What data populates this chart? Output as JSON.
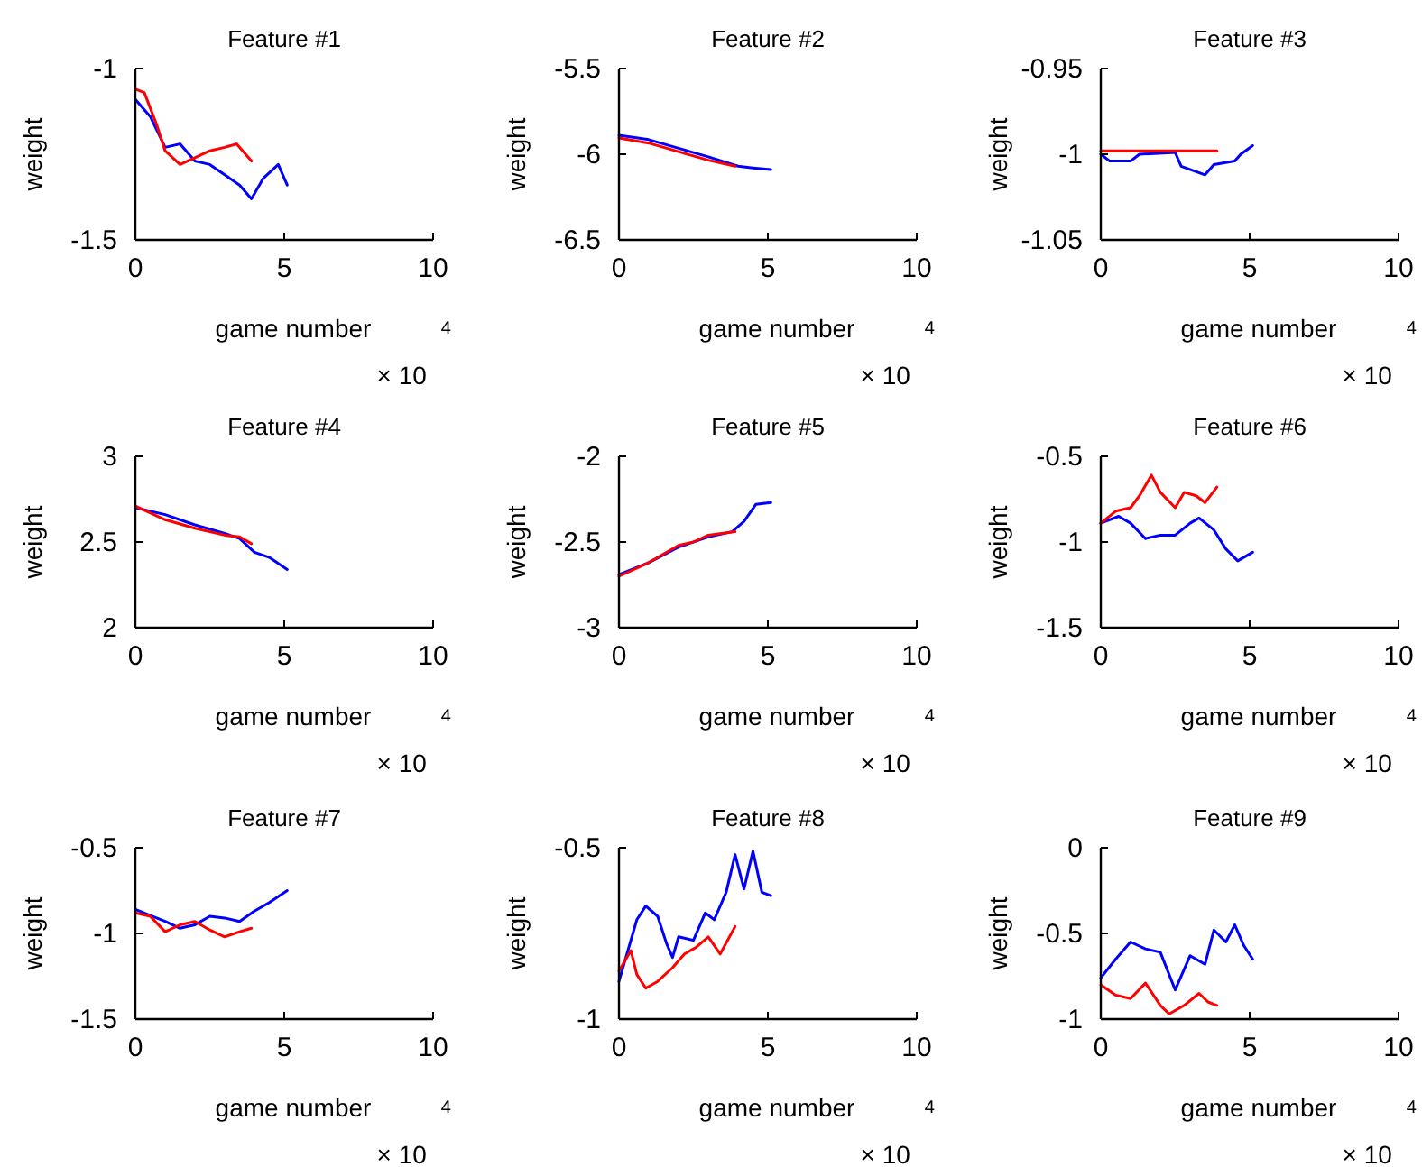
{
  "chart_data": [
    {
      "type": "line",
      "title": "Feature #1",
      "xlabel": "game number",
      "ylabel": "weight",
      "annotations": [
        "× 10$^{4}$"
      ],
      "xlim": [
        0,
        10
      ],
      "xticks": [
        0,
        5,
        10
      ],
      "ylim": [
        -1.5,
        -1
      ],
      "yticks": [
        -1.5,
        -1
      ],
      "series": [
        {
          "color": "#0000ff",
          "x": [
            0,
            0.5,
            1,
            1.5,
            2,
            2.5,
            3,
            3.5,
            3.9,
            4.3,
            4.8,
            5.1
          ],
          "values": [
            -1.09,
            -1.14,
            -1.23,
            -1.22,
            -1.27,
            -1.28,
            -1.31,
            -1.34,
            -1.38,
            -1.32,
            -1.28,
            -1.34
          ]
        },
        {
          "color": "#ff0000",
          "x": [
            0,
            0.3,
            0.7,
            1,
            1.5,
            2,
            2.5,
            3,
            3.4,
            3.9
          ],
          "values": [
            -1.06,
            -1.07,
            -1.16,
            -1.24,
            -1.28,
            -1.26,
            -1.24,
            -1.23,
            -1.22,
            -1.27
          ]
        }
      ]
    },
    {
      "type": "line",
      "title": "Feature #2",
      "xlabel": "game number",
      "ylabel": "weight",
      "annotations": [
        "× 10$^{4}$"
      ],
      "xlim": [
        0,
        10
      ],
      "xticks": [
        0,
        5,
        10
      ],
      "ylim": [
        -6.5,
        -5.5
      ],
      "yticks": [
        -6.5,
        -6,
        -5.5
      ],
      "series": [
        {
          "color": "#0000ff",
          "x": [
            0,
            1,
            2,
            3,
            4,
            4.5,
            5.1
          ],
          "values": [
            -5.89,
            -5.915,
            -5.965,
            -6.015,
            -6.07,
            -6.08,
            -6.09
          ]
        },
        {
          "color": "#ff0000",
          "x": [
            0,
            1,
            2,
            3,
            3.9
          ],
          "values": [
            -5.905,
            -5.935,
            -5.985,
            -6.035,
            -6.07
          ]
        }
      ]
    },
    {
      "type": "line",
      "title": "Feature #3",
      "xlabel": "game number",
      "ylabel": "weight",
      "annotations": [
        "× 10$^{4}$"
      ],
      "xlim": [
        0,
        10
      ],
      "xticks": [
        0,
        5,
        10
      ],
      "ylim": [
        -1.05,
        -0.95
      ],
      "yticks": [
        -1.05,
        -1,
        -0.95
      ],
      "series": [
        {
          "color": "#0000ff",
          "x": [
            0,
            0.3,
            1,
            1.3,
            2.5,
            2.7,
            3.5,
            3.8,
            4.5,
            4.7,
            5.1
          ],
          "values": [
            -1,
            -1.004,
            -1.004,
            -1,
            -0.999,
            -1.007,
            -1.012,
            -1.006,
            -1.004,
            -1,
            -0.995
          ]
        },
        {
          "color": "#ff0000",
          "x": [
            0,
            3.9
          ],
          "values": [
            -0.998,
            -0.998
          ]
        }
      ]
    },
    {
      "type": "line",
      "title": "Feature #4",
      "xlabel": "game number",
      "ylabel": "weight",
      "annotations": [
        "× 10$^{4}$"
      ],
      "xlim": [
        0,
        10
      ],
      "xticks": [
        0,
        5,
        10
      ],
      "ylim": [
        2,
        3
      ],
      "yticks": [
        2,
        2.5,
        3
      ],
      "series": [
        {
          "color": "#0000ff",
          "x": [
            0,
            1,
            2,
            3,
            3.5,
            4,
            4.5,
            5.1
          ],
          "values": [
            2.7,
            2.66,
            2.6,
            2.55,
            2.52,
            2.44,
            2.41,
            2.34
          ]
        },
        {
          "color": "#ff0000",
          "x": [
            0,
            1,
            2,
            3,
            3.5,
            3.9
          ],
          "values": [
            2.71,
            2.63,
            2.58,
            2.54,
            2.53,
            2.49
          ]
        }
      ]
    },
    {
      "type": "line",
      "title": "Feature #5",
      "xlabel": "game number",
      "ylabel": "weight",
      "annotations": [
        "× 10$^{4}$"
      ],
      "xlim": [
        0,
        10
      ],
      "xticks": [
        0,
        5,
        10
      ],
      "ylim": [
        -3,
        -2
      ],
      "yticks": [
        -3,
        -2.5,
        -2
      ],
      "series": [
        {
          "color": "#0000ff",
          "x": [
            0,
            1,
            2,
            3,
            3.8,
            4.2,
            4.6,
            5.1
          ],
          "values": [
            -2.69,
            -2.62,
            -2.53,
            -2.47,
            -2.44,
            -2.38,
            -2.28,
            -2.27
          ]
        },
        {
          "color": "#ff0000",
          "x": [
            0,
            1,
            2,
            2.5,
            3,
            3.9
          ],
          "values": [
            -2.7,
            -2.62,
            -2.52,
            -2.5,
            -2.46,
            -2.44
          ]
        }
      ]
    },
    {
      "type": "line",
      "title": "Feature #6",
      "xlabel": "game number",
      "ylabel": "weight",
      "annotations": [
        "× 10$^{4}$"
      ],
      "xlim": [
        0,
        10
      ],
      "xticks": [
        0,
        5,
        10
      ],
      "ylim": [
        -1.5,
        -0.5
      ],
      "yticks": [
        -1.5,
        -1,
        -0.5
      ],
      "series": [
        {
          "color": "#0000ff",
          "x": [
            0,
            0.6,
            1,
            1.5,
            2,
            2.5,
            3,
            3.3,
            3.8,
            4.2,
            4.6,
            5.1
          ],
          "values": [
            -0.89,
            -0.85,
            -0.89,
            -0.98,
            -0.96,
            -0.96,
            -0.89,
            -0.86,
            -0.93,
            -1.04,
            -1.11,
            -1.06
          ]
        },
        {
          "color": "#ff0000",
          "x": [
            0,
            0.5,
            1,
            1.3,
            1.7,
            2,
            2.5,
            2.8,
            3.2,
            3.5,
            3.9
          ],
          "values": [
            -0.89,
            -0.82,
            -0.8,
            -0.73,
            -0.61,
            -0.71,
            -0.8,
            -0.71,
            -0.73,
            -0.77,
            -0.68
          ]
        }
      ]
    },
    {
      "type": "line",
      "title": "Feature #7",
      "xlabel": "game number",
      "ylabel": "weight",
      "annotations": [
        "× 10$^{4}$"
      ],
      "xlim": [
        0,
        10
      ],
      "xticks": [
        0,
        5,
        10
      ],
      "ylim": [
        -1.5,
        -0.5
      ],
      "yticks": [
        -1.5,
        -1,
        -0.5
      ],
      "series": [
        {
          "color": "#0000ff",
          "x": [
            0,
            1,
            1.5,
            2,
            2.5,
            3,
            3.5,
            4,
            4.5,
            5.1
          ],
          "values": [
            -0.86,
            -0.93,
            -0.97,
            -0.95,
            -0.9,
            -0.91,
            -0.93,
            -0.87,
            -0.82,
            -0.75
          ]
        },
        {
          "color": "#ff0000",
          "x": [
            0,
            0.5,
            1,
            1.5,
            2,
            2.5,
            3,
            3.5,
            3.9
          ],
          "values": [
            -0.88,
            -0.9,
            -0.99,
            -0.95,
            -0.93,
            -0.98,
            -1.02,
            -0.99,
            -0.97
          ]
        }
      ]
    },
    {
      "type": "line",
      "title": "Feature #8",
      "xlabel": "game number",
      "ylabel": "weight",
      "annotations": [
        "× 10$^{4}$"
      ],
      "xlim": [
        0,
        10
      ],
      "xticks": [
        0,
        5,
        10
      ],
      "ylim": [
        -1,
        -0.5
      ],
      "yticks": [
        -1,
        -0.5
      ],
      "series": [
        {
          "color": "#0000ff",
          "x": [
            0,
            0.3,
            0.6,
            0.9,
            1.3,
            1.6,
            1.8,
            2,
            2.5,
            2.9,
            3.2,
            3.6,
            3.9,
            4.2,
            4.5,
            4.8,
            5.1
          ],
          "values": [
            -0.89,
            -0.8,
            -0.71,
            -0.67,
            -0.7,
            -0.78,
            -0.82,
            -0.76,
            -0.77,
            -0.69,
            -0.71,
            -0.63,
            -0.52,
            -0.62,
            -0.51,
            -0.63,
            -0.64
          ]
        },
        {
          "color": "#ff0000",
          "x": [
            0,
            0.4,
            0.6,
            0.9,
            1.3,
            1.8,
            2.2,
            2.6,
            3,
            3.4,
            3.9
          ],
          "values": [
            -0.86,
            -0.8,
            -0.87,
            -0.91,
            -0.89,
            -0.85,
            -0.81,
            -0.79,
            -0.76,
            -0.81,
            -0.73
          ]
        }
      ]
    },
    {
      "type": "line",
      "title": "Feature #9",
      "xlabel": "game number",
      "ylabel": "weight",
      "annotations": [
        "× 10$^{4}$"
      ],
      "xlim": [
        0,
        10
      ],
      "xticks": [
        0,
        5,
        10
      ],
      "ylim": [
        -1,
        0
      ],
      "yticks": [
        -1,
        -0.5,
        0
      ],
      "series": [
        {
          "color": "#0000ff",
          "x": [
            0,
            0.5,
            1,
            1.5,
            2,
            2.5,
            3,
            3.5,
            3.8,
            4.2,
            4.5,
            4.8,
            5.1
          ],
          "values": [
            -0.76,
            -0.65,
            -0.55,
            -0.59,
            -0.61,
            -0.83,
            -0.63,
            -0.68,
            -0.48,
            -0.55,
            -0.45,
            -0.57,
            -0.65
          ]
        },
        {
          "color": "#ff0000",
          "x": [
            0,
            0.5,
            1,
            1.5,
            2,
            2.3,
            2.8,
            3.3,
            3.6,
            3.9
          ],
          "values": [
            -0.8,
            -0.86,
            -0.88,
            -0.79,
            -0.92,
            -0.97,
            -0.92,
            -0.85,
            -0.9,
            -0.92
          ]
        }
      ]
    }
  ]
}
